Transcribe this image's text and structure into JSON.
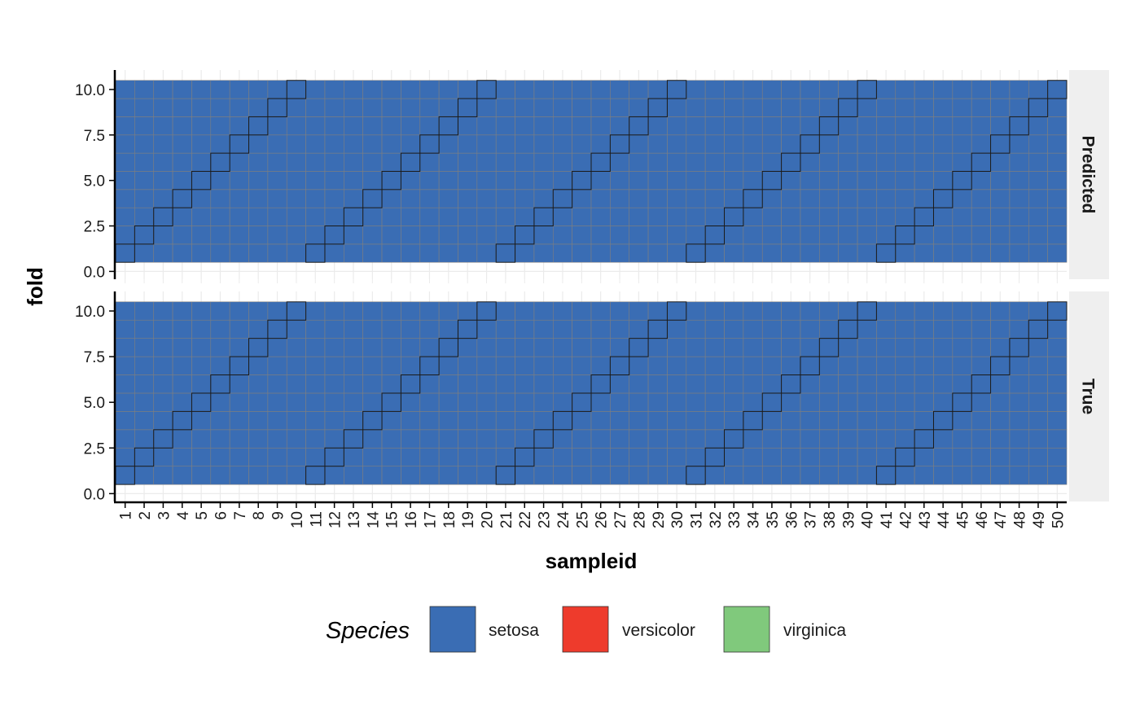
{
  "chart_data": {
    "type": "heatmap",
    "xlabel": "sampleid",
    "ylabel": "fold",
    "x_categories": [
      1,
      2,
      3,
      4,
      5,
      6,
      7,
      8,
      9,
      10,
      11,
      12,
      13,
      14,
      15,
      16,
      17,
      18,
      19,
      20,
      21,
      22,
      23,
      24,
      25,
      26,
      27,
      28,
      29,
      30,
      31,
      32,
      33,
      34,
      35,
      36,
      37,
      38,
      39,
      40,
      41,
      42,
      43,
      44,
      45,
      46,
      47,
      48,
      49,
      50
    ],
    "y_range": [
      0,
      10.5
    ],
    "y_ticks": [
      "0.0",
      "2.5",
      "5.0",
      "7.5",
      "10.0"
    ],
    "y_tick_values": [
      0,
      2.5,
      5,
      7.5,
      10
    ],
    "fold_values": [
      1,
      2,
      3,
      4,
      5,
      6,
      7,
      8,
      9,
      10
    ],
    "facets": [
      "Predicted",
      "True"
    ],
    "cell_fill": "setosa",
    "heldout_rule": "fold equals ((sampleid - 1) mod 10) + 1",
    "heldout_cells": [
      {
        "sampleid": 1,
        "fold": 1
      },
      {
        "sampleid": 2,
        "fold": 2
      },
      {
        "sampleid": 3,
        "fold": 3
      },
      {
        "sampleid": 4,
        "fold": 4
      },
      {
        "sampleid": 5,
        "fold": 5
      },
      {
        "sampleid": 6,
        "fold": 6
      },
      {
        "sampleid": 7,
        "fold": 7
      },
      {
        "sampleid": 8,
        "fold": 8
      },
      {
        "sampleid": 9,
        "fold": 9
      },
      {
        "sampleid": 10,
        "fold": 10
      },
      {
        "sampleid": 11,
        "fold": 1
      },
      {
        "sampleid": 12,
        "fold": 2
      },
      {
        "sampleid": 13,
        "fold": 3
      },
      {
        "sampleid": 14,
        "fold": 4
      },
      {
        "sampleid": 15,
        "fold": 5
      },
      {
        "sampleid": 16,
        "fold": 6
      },
      {
        "sampleid": 17,
        "fold": 7
      },
      {
        "sampleid": 18,
        "fold": 8
      },
      {
        "sampleid": 19,
        "fold": 9
      },
      {
        "sampleid": 20,
        "fold": 10
      },
      {
        "sampleid": 21,
        "fold": 1
      },
      {
        "sampleid": 22,
        "fold": 2
      },
      {
        "sampleid": 23,
        "fold": 3
      },
      {
        "sampleid": 24,
        "fold": 4
      },
      {
        "sampleid": 25,
        "fold": 5
      },
      {
        "sampleid": 26,
        "fold": 6
      },
      {
        "sampleid": 27,
        "fold": 7
      },
      {
        "sampleid": 28,
        "fold": 8
      },
      {
        "sampleid": 29,
        "fold": 9
      },
      {
        "sampleid": 30,
        "fold": 10
      },
      {
        "sampleid": 31,
        "fold": 1
      },
      {
        "sampleid": 32,
        "fold": 2
      },
      {
        "sampleid": 33,
        "fold": 3
      },
      {
        "sampleid": 34,
        "fold": 4
      },
      {
        "sampleid": 35,
        "fold": 5
      },
      {
        "sampleid": 36,
        "fold": 6
      },
      {
        "sampleid": 37,
        "fold": 7
      },
      {
        "sampleid": 38,
        "fold": 8
      },
      {
        "sampleid": 39,
        "fold": 9
      },
      {
        "sampleid": 40,
        "fold": 10
      },
      {
        "sampleid": 41,
        "fold": 1
      },
      {
        "sampleid": 42,
        "fold": 2
      },
      {
        "sampleid": 43,
        "fold": 3
      },
      {
        "sampleid": 44,
        "fold": 4
      },
      {
        "sampleid": 45,
        "fold": 5
      },
      {
        "sampleid": 46,
        "fold": 6
      },
      {
        "sampleid": 47,
        "fold": 7
      },
      {
        "sampleid": 48,
        "fold": 8
      },
      {
        "sampleid": 49,
        "fold": 9
      },
      {
        "sampleid": 50,
        "fold": 10
      }
    ],
    "legend": {
      "title": "Species",
      "position": "bottom",
      "items": [
        {
          "label": "setosa",
          "color": "#3A6DB4"
        },
        {
          "label": "versicolor",
          "color": "#EE3B2C"
        },
        {
          "label": "virginica",
          "color": "#80C97C"
        }
      ]
    },
    "grid": true,
    "colors": {
      "panel_grid": "#EBEBEB",
      "cell_border": "#7F7F7F",
      "heldout_border": "#1A1A1A",
      "strip_background": "#EFEFEF",
      "axis_line": "#000000"
    }
  }
}
